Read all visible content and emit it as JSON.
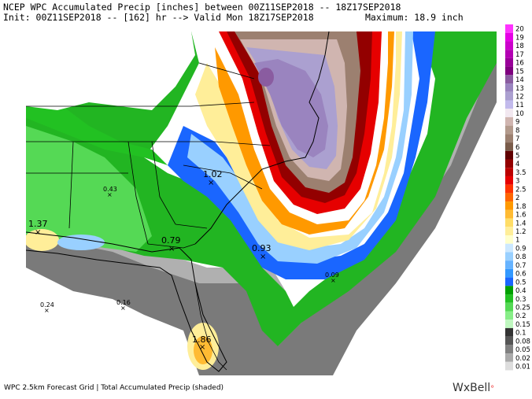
{
  "header": {
    "line1_left": "NCEP WPC Accumulated Precip [inches] between 00Z11SEP2018 -- 18Z17SEP2018",
    "line2_left": "Init: 00Z11SEP2018 -- [162] hr --> Valid Mon 18Z17SEP2018",
    "line2_right": "Maximum: 18.9 inch"
  },
  "legend": {
    "levels": [
      "20",
      "19",
      "18",
      "17",
      "16",
      "15",
      "14",
      "13",
      "12",
      "11",
      "10",
      "9",
      "8",
      "7",
      "6",
      "5",
      "4",
      "3.5",
      "3",
      "2.5",
      "2",
      "1.8",
      "1.6",
      "1.4",
      "1.2",
      "1",
      "0.9",
      "0.8",
      "0.7",
      "0.6",
      "0.5",
      "0.4",
      "0.3",
      "0.25",
      "0.2",
      "0.15",
      "0.1",
      "0.08",
      "0.05",
      "0.02",
      "0.01"
    ],
    "colors": [
      "#ff33ff",
      "#e600e6",
      "#cc00cc",
      "#b300b3",
      "#990099",
      "#7f007f",
      "#8a5ca0",
      "#9a84bf",
      "#aba0d0",
      "#c2baec",
      "#f2e8f0",
      "#d0b5b0",
      "#b39a8c",
      "#9c8070",
      "#7a5c4a",
      "#600000",
      "#930000",
      "#bb0000",
      "#e60000",
      "#ff3300",
      "#ff6600",
      "#ff9900",
      "#ffbb33",
      "#ffdd66",
      "#ffee99",
      "#ffffcc",
      "#cce8ff",
      "#99d0ff",
      "#66b3ff",
      "#3399ff",
      "#1a66ff",
      "#00a000",
      "#22c122",
      "#55d955",
      "#88ee88",
      "#bff7bf",
      "#333333",
      "#555555",
      "#808080",
      "#aaaaaa",
      "#dddddd"
    ]
  },
  "annotations": [
    {
      "label": "1.02"
    },
    {
      "label": "0.43"
    },
    {
      "label": "1.37"
    },
    {
      "label": "0.79"
    },
    {
      "label": "0.93"
    },
    {
      "label": "0.09"
    },
    {
      "label": "0.24"
    },
    {
      "label": "0.16"
    },
    {
      "label": "1.86"
    }
  ],
  "footer": {
    "text": "WPC 2.5km Forecast Grid | Total Accumulated Precip (shaded)"
  },
  "brand": {
    "name": "WxBell",
    "dot": "°"
  }
}
